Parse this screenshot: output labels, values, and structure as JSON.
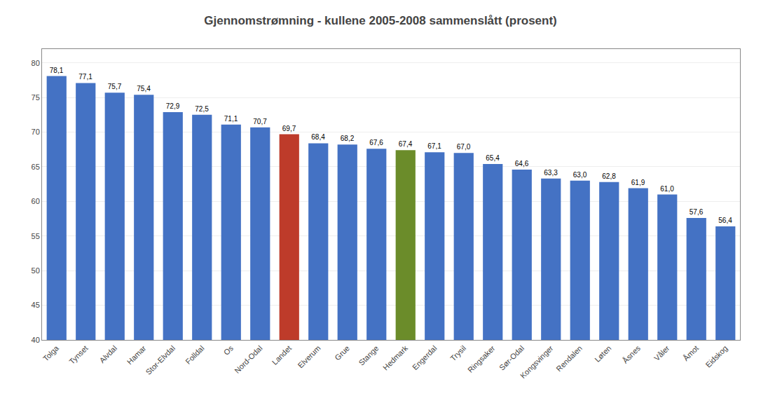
{
  "chart_data": {
    "type": "bar",
    "title": "Gjennomstrømning - kullene 2005-2008 sammenslått (prosent)",
    "categories": [
      "Tolga",
      "Tynset",
      "Alvdal",
      "Hamar",
      "Stor-Elvdal",
      "Folldal",
      "Os",
      "Nord-Odal",
      "Landet",
      "Elverum",
      "Grue",
      "Stange",
      "Hedmark",
      "Engerdal",
      "Trysil",
      "Ringsaker",
      "Sør-Odal",
      "Kongsvinger",
      "Rendalen",
      "Løten",
      "Åsnes",
      "Våler",
      "Åmot",
      "Eidskog"
    ],
    "values": [
      78.1,
      77.1,
      75.7,
      75.4,
      72.9,
      72.5,
      71.1,
      70.7,
      69.7,
      68.4,
      68.2,
      67.6,
      67.4,
      67.1,
      67.0,
      65.4,
      64.6,
      63.3,
      63.0,
      62.8,
      61.9,
      61.0,
      57.6,
      56.4
    ],
    "value_labels": [
      "78,1",
      "77,1",
      "75,7",
      "75,4",
      "72,9",
      "72,5",
      "71,1",
      "70,7",
      "69,7",
      "68,4",
      "68,2",
      "67,6",
      "67,4",
      "67,1",
      "67,0",
      "65,4",
      "64,6",
      "63,3",
      "63,0",
      "62,8",
      "61,9",
      "61,0",
      "57,6",
      "56,4"
    ],
    "colors": [
      "#4472C4",
      "#4472C4",
      "#4472C4",
      "#4472C4",
      "#4472C4",
      "#4472C4",
      "#4472C4",
      "#4472C4",
      "#BE3B2A",
      "#4472C4",
      "#4472C4",
      "#4472C4",
      "#6B8C2A",
      "#4472C4",
      "#4472C4",
      "#4472C4",
      "#4472C4",
      "#4472C4",
      "#4472C4",
      "#4472C4",
      "#4472C4",
      "#4472C4",
      "#4472C4",
      "#4472C4"
    ],
    "ylim": [
      40,
      82
    ],
    "yticks": [
      40,
      45,
      50,
      55,
      60,
      65,
      70,
      75,
      80
    ],
    "grid": true,
    "data_labels": true
  }
}
